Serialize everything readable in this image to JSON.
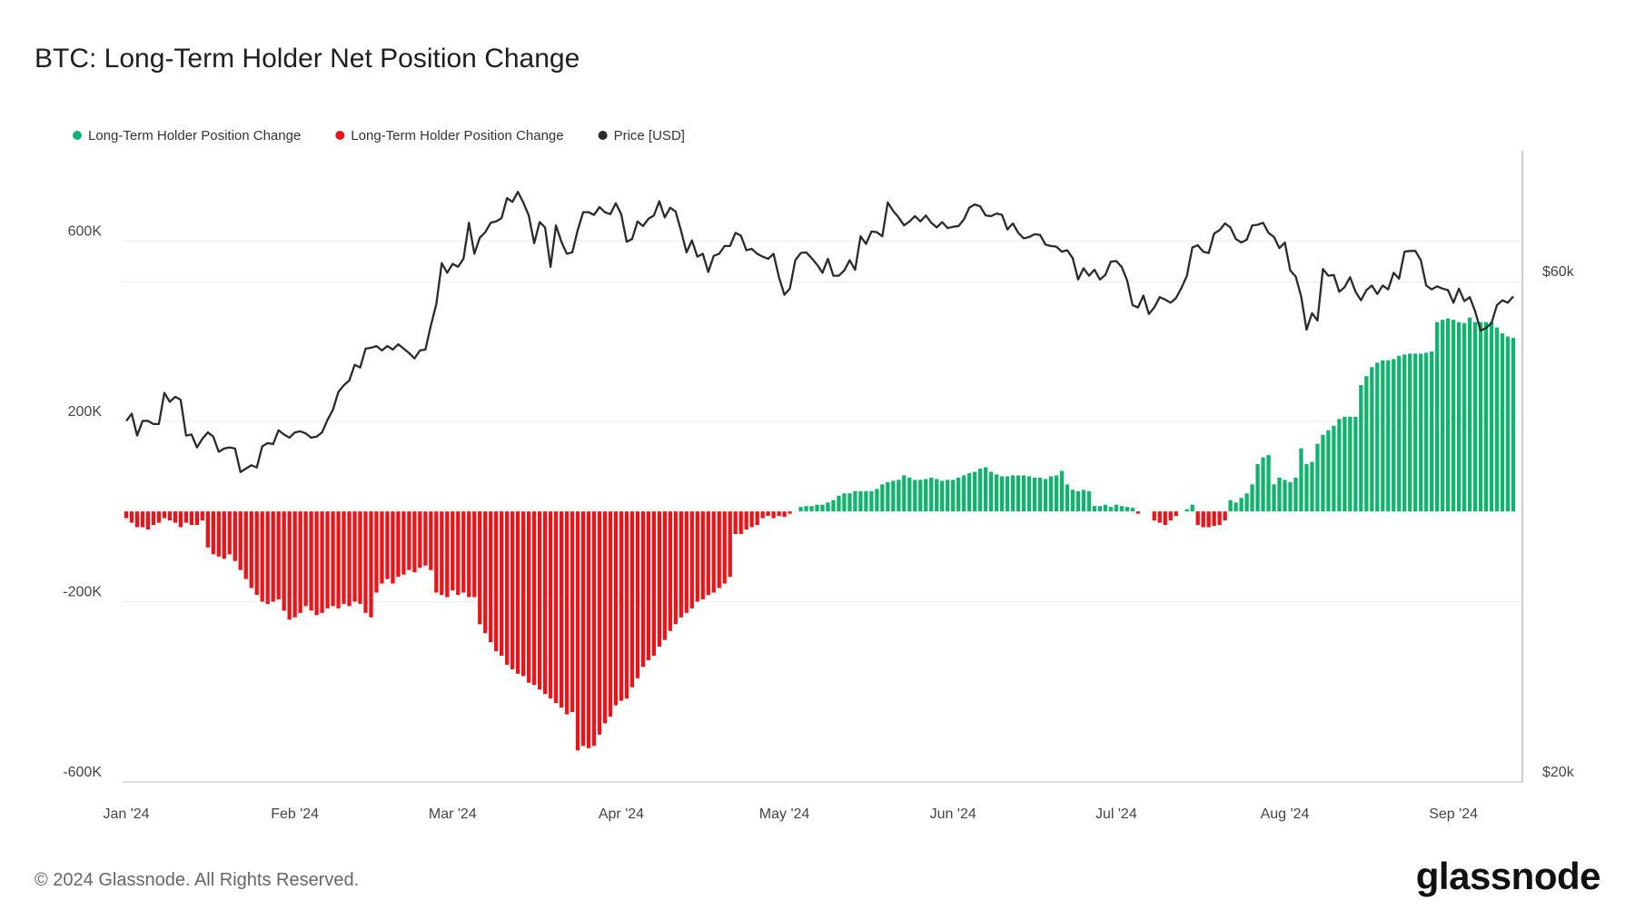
{
  "chart_data": {
    "type": "bar",
    "title": "BTC: Long-Term Holder Net Position Change",
    "legend": "top-left",
    "grid": true,
    "categories": [
      "Jan '24",
      null,
      null,
      null,
      null,
      null,
      null,
      null,
      null,
      null,
      null,
      null,
      null,
      null,
      null,
      null,
      null,
      null,
      null,
      null,
      null,
      null,
      null,
      null,
      null,
      null,
      null,
      null,
      null,
      null,
      null,
      "Feb '24",
      null,
      null,
      null,
      null,
      null,
      null,
      null,
      null,
      null,
      null,
      null,
      null,
      null,
      null,
      null,
      null,
      null,
      null,
      null,
      null,
      null,
      null,
      null,
      null,
      null,
      null,
      null,
      null,
      "Mar '24",
      null,
      null,
      null,
      null,
      null,
      null,
      null,
      null,
      null,
      null,
      null,
      null,
      null,
      null,
      null,
      null,
      null,
      null,
      null,
      null,
      null,
      null,
      null,
      null,
      null,
      null,
      null,
      null,
      null,
      null,
      "Apr '24",
      null,
      null,
      null,
      null,
      null,
      null,
      null,
      null,
      null,
      null,
      null,
      null,
      null,
      null,
      null,
      null,
      null,
      null,
      null,
      null,
      null,
      null,
      null,
      null,
      null,
      null,
      null,
      null,
      null,
      "May '24",
      null,
      null,
      null,
      null,
      null,
      null,
      null,
      null,
      null,
      null,
      null,
      null,
      null,
      null,
      null,
      null,
      null,
      null,
      null,
      null,
      null,
      null,
      null,
      null,
      null,
      null,
      null,
      null,
      null,
      null,
      "Jun '24",
      null,
      null,
      null,
      null,
      null,
      null,
      null,
      null,
      null,
      null,
      null,
      null,
      null,
      null,
      null,
      null,
      null,
      null,
      null,
      null,
      null,
      null,
      null,
      null,
      null,
      null,
      null,
      null,
      null,
      "Jul '24",
      null,
      null,
      null,
      null,
      null,
      null,
      null,
      null,
      null,
      null,
      null,
      null,
      null,
      null,
      null,
      null,
      null,
      null,
      null,
      null,
      null,
      null,
      null,
      null,
      null,
      null,
      null,
      null,
      null,
      null,
      "Aug '24",
      null,
      null,
      null,
      null,
      null,
      null,
      null,
      null,
      null,
      null,
      null,
      null,
      null,
      null,
      null,
      null,
      null,
      null,
      null,
      null,
      null,
      null,
      null,
      null,
      null,
      null,
      null,
      null,
      null,
      null,
      "Sep '24",
      null,
      null,
      null,
      null,
      null,
      null,
      null,
      null,
      null,
      null,
      null
    ],
    "ylim": [
      -600000,
      800000
    ],
    "yticks": [
      {
        "value": -600000,
        "label": "-600K"
      },
      {
        "value": -200000,
        "label": "-200K"
      },
      {
        "value": 200000,
        "label": "200K"
      },
      {
        "value": 600000,
        "label": "600K"
      }
    ],
    "y2lim": [
      20000,
      80000
    ],
    "y2scale": "log",
    "y2ticks": [
      {
        "value": 20000,
        "label": "$20k"
      },
      {
        "value": 60000,
        "label": "$60k"
      }
    ],
    "series": [
      {
        "name": "Long-Term Holder Position Change",
        "color": "#12b36f",
        "values": [
          null,
          null,
          null,
          null,
          null,
          null,
          null,
          null,
          null,
          null,
          null,
          null,
          null,
          null,
          null,
          null,
          null,
          null,
          null,
          null,
          null,
          null,
          null,
          null,
          null,
          null,
          null,
          null,
          null,
          null,
          null,
          null,
          null,
          null,
          null,
          null,
          null,
          null,
          null,
          null,
          null,
          null,
          null,
          null,
          null,
          null,
          null,
          null,
          null,
          null,
          null,
          null,
          null,
          null,
          null,
          null,
          null,
          null,
          null,
          null,
          null,
          null,
          null,
          null,
          null,
          null,
          null,
          null,
          null,
          null,
          null,
          null,
          null,
          null,
          null,
          null,
          null,
          null,
          null,
          null,
          null,
          null,
          null,
          null,
          null,
          null,
          null,
          null,
          null,
          null,
          null,
          null,
          null,
          null,
          null,
          null,
          null,
          null,
          null,
          null,
          null,
          null,
          null,
          null,
          null,
          null,
          null,
          null,
          null,
          null,
          null,
          null,
          null,
          null,
          null,
          null,
          null,
          null,
          null,
          null,
          null,
          null,
          null,
          null,
          10000,
          12000,
          12000,
          15000,
          15000,
          20000,
          25000,
          35000,
          40000,
          40000,
          45000,
          45000,
          45000,
          45000,
          50000,
          60000,
          65000,
          68000,
          70000,
          80000,
          75000,
          70000,
          70000,
          72000,
          75000,
          72000,
          68000,
          70000,
          70000,
          75000,
          80000,
          85000,
          88000,
          95000,
          98000,
          88000,
          82000,
          78000,
          78000,
          80000,
          80000,
          80000,
          78000,
          75000,
          75000,
          72000,
          78000,
          80000,
          90000,
          60000,
          48000,
          45000,
          48000,
          45000,
          12000,
          12000,
          15000,
          10000,
          15000,
          12000,
          10000,
          8000,
          null,
          null,
          null,
          null,
          null,
          null,
          null,
          null,
          null,
          5000,
          15000,
          null,
          null,
          null,
          null,
          null,
          null,
          25000,
          20000,
          30000,
          40000,
          60000,
          105000,
          120000,
          125000,
          60000,
          75000,
          70000,
          65000,
          75000,
          140000,
          105000,
          110000,
          150000,
          170000,
          180000,
          190000,
          205000,
          210000,
          210000,
          210000,
          280000,
          300000,
          320000,
          330000,
          335000,
          335000,
          338000,
          345000,
          348000,
          350000,
          350000,
          350000,
          352000,
          355000,
          420000,
          425000,
          428000,
          425000,
          420000,
          418000,
          430000,
          420000,
          420000,
          420000,
          420000,
          408000,
          395000,
          388000,
          385000
        ]
      },
      {
        "name": "Long-Term Holder Position Change",
        "color": "#e8161b",
        "values": [
          -15000,
          -25000,
          -35000,
          -35000,
          -40000,
          -30000,
          -25000,
          -15000,
          -20000,
          -25000,
          -35000,
          -25000,
          -30000,
          -30000,
          -20000,
          -80000,
          -95000,
          -100000,
          -105000,
          -95000,
          -110000,
          -130000,
          -150000,
          -170000,
          -185000,
          -200000,
          -205000,
          -200000,
          -195000,
          -220000,
          -240000,
          -235000,
          -225000,
          -210000,
          -220000,
          -230000,
          -225000,
          -215000,
          -210000,
          -215000,
          -205000,
          -210000,
          -200000,
          -205000,
          -225000,
          -235000,
          -180000,
          -160000,
          -150000,
          -160000,
          -145000,
          -140000,
          -130000,
          -135000,
          -125000,
          -120000,
          -130000,
          -180000,
          -185000,
          -190000,
          -175000,
          -185000,
          -180000,
          -190000,
          -190000,
          -250000,
          -270000,
          -290000,
          -310000,
          -320000,
          -340000,
          -350000,
          -360000,
          -365000,
          -380000,
          -385000,
          -395000,
          -405000,
          -415000,
          -425000,
          -435000,
          -450000,
          -445000,
          -530000,
          -520000,
          -525000,
          -520000,
          -495000,
          -470000,
          -455000,
          -430000,
          -420000,
          -415000,
          -390000,
          -370000,
          -345000,
          -330000,
          -320000,
          -300000,
          -285000,
          -265000,
          -250000,
          -235000,
          -225000,
          -215000,
          -200000,
          -195000,
          -185000,
          -180000,
          -170000,
          -160000,
          -145000,
          -50000,
          -50000,
          -40000,
          -35000,
          -30000,
          -15000,
          -10000,
          -15000,
          -10000,
          -12000,
          -5000,
          null,
          null,
          null,
          null,
          null,
          null,
          null,
          null,
          null,
          null,
          null,
          null,
          null,
          null,
          null,
          null,
          null,
          null,
          null,
          null,
          null,
          null,
          null,
          null,
          null,
          null,
          null,
          null,
          null,
          null,
          null,
          null,
          null,
          null,
          null,
          null,
          null,
          null,
          null,
          null,
          null,
          null,
          null,
          null,
          null,
          null,
          null,
          null,
          null,
          null,
          null,
          null,
          null,
          null,
          null,
          null,
          null,
          null,
          null,
          null,
          null,
          null,
          null,
          -5000,
          null,
          null,
          -20000,
          -25000,
          -30000,
          -20000,
          -10000,
          null,
          null,
          null,
          -30000,
          -35000,
          -35000,
          -32000,
          -30000,
          -20000,
          null,
          null,
          null,
          null,
          null,
          null,
          null,
          null,
          null,
          null,
          null,
          null,
          null,
          null,
          null,
          null,
          null,
          null,
          null,
          null,
          null,
          null,
          null,
          null,
          null,
          null,
          null,
          null,
          null,
          null,
          null,
          null,
          null,
          null,
          null,
          null,
          null,
          null,
          null,
          null,
          null,
          null,
          null,
          null,
          null,
          null,
          null,
          null,
          null,
          null,
          null,
          null,
          null
        ]
      },
      {
        "name": "Price [USD]",
        "color": "#2b2b2b",
        "type": "line",
        "axis": "y2",
        "values": [
          44200,
          44900,
          42800,
          44200,
          44200,
          43900,
          43900,
          47000,
          46100,
          46600,
          46300,
          42800,
          42900,
          41700,
          42500,
          43100,
          42700,
          41300,
          41600,
          41700,
          41600,
          39500,
          39800,
          40100,
          39900,
          41800,
          42100,
          42000,
          43300,
          42900,
          42600,
          43100,
          43200,
          43000,
          42600,
          42700,
          43100,
          44300,
          45300,
          47100,
          47800,
          48300,
          50000,
          49700,
          51800,
          51900,
          52100,
          51600,
          52100,
          51700,
          52300,
          51800,
          51300,
          50700,
          51600,
          51700,
          54500,
          57100,
          62500,
          61200,
          62400,
          62000,
          63100,
          68300,
          63800,
          66100,
          66900,
          68300,
          68500,
          69000,
          72100,
          71500,
          73100,
          71400,
          69400,
          65300,
          68400,
          67600,
          62000,
          67900,
          65500,
          63800,
          64000,
          67200,
          69900,
          69900,
          69500,
          70700,
          69900,
          69600,
          71300,
          69600,
          65500,
          65900,
          68500,
          67800,
          68900,
          69400,
          71600,
          69100,
          70600,
          70000,
          67100,
          64000,
          65700,
          63400,
          63800,
          61300,
          63500,
          63800,
          64900,
          64900,
          66800,
          66400,
          64300,
          64500,
          63800,
          63400,
          63100,
          63800,
          60600,
          58300,
          59100,
          62900,
          63900,
          64000,
          63200,
          62300,
          61200,
          63100,
          60800,
          60800,
          61500,
          62900,
          61600,
          66300,
          65200,
          67000,
          66900,
          66300,
          71400,
          70100,
          69100,
          67900,
          68500,
          69300,
          68500,
          69400,
          68300,
          67600,
          68400,
          67500,
          67700,
          67800,
          68800,
          70600,
          71100,
          70800,
          69400,
          69300,
          69700,
          69500,
          67300,
          68200,
          66800,
          66000,
          66200,
          66600,
          66500,
          65100,
          64900,
          64800,
          64100,
          64300,
          63200,
          60300,
          61800,
          60800,
          61600,
          60300,
          60900,
          62700,
          62800,
          62000,
          60200,
          57000,
          56700,
          58200,
          55900,
          56700,
          58000,
          57700,
          57300,
          57900,
          59200,
          60800,
          64700,
          65000,
          64100,
          63900,
          66700,
          67200,
          68200,
          67600,
          65900,
          65400,
          65800,
          67900,
          68000,
          68300,
          66800,
          66200,
          64600,
          65400,
          61500,
          60700,
          58100,
          54000,
          56000,
          55100,
          61700,
          60800,
          60900,
          58700,
          59300,
          60600,
          58700,
          57600,
          58900,
          59500,
          58400,
          59500,
          59000,
          61200,
          60400,
          64100,
          64200,
          64200,
          62900,
          59500,
          59000,
          59400,
          59100,
          58900,
          57300,
          59100,
          57500,
          58000,
          56200,
          53900,
          54200,
          54800,
          57000,
          57600,
          57300,
          58100
        ]
      }
    ]
  },
  "footer": {
    "copyright": "© 2024 Glassnode. All Rights Reserved.",
    "brand": "glassnode"
  }
}
